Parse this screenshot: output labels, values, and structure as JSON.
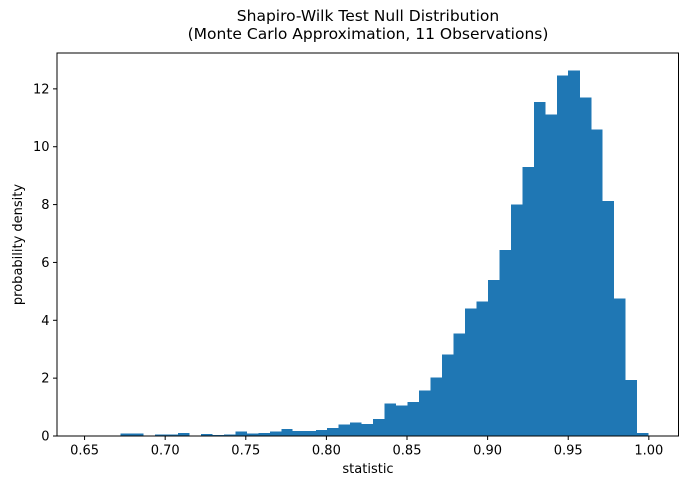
{
  "figure": {
    "title_line1": "Shapiro-Wilk Test Null Distribution",
    "title_line2": "(Monte Carlo Approximation, 11 Observations)",
    "xlabel": "statistic",
    "ylabel": "probability density"
  },
  "colors": {
    "bar_fill": "#1f77b4",
    "axis_line": "#000000",
    "background": "#ffffff",
    "text": "#000000"
  },
  "chart_data": {
    "type": "bar",
    "subtype": "histogram",
    "title": "Shapiro-Wilk Test Null Distribution\n(Monte Carlo Approximation, 11 Observations)",
    "xlabel": "statistic",
    "ylabel": "probability density",
    "grid": false,
    "legend_position": "none",
    "xlim": [
      0.6329,
      1.0184
    ],
    "ylim": [
      0,
      13.24
    ],
    "x_ticks": [
      0.65,
      0.7,
      0.75,
      0.8,
      0.85,
      0.9,
      0.95,
      1.0
    ],
    "x_tick_labels": [
      "0.65",
      "0.70",
      "0.75",
      "0.80",
      "0.85",
      "0.90",
      "0.95",
      "1.00"
    ],
    "y_ticks": [
      0,
      2,
      4,
      6,
      8,
      10,
      12
    ],
    "y_tick_labels": [
      "0",
      "2",
      "4",
      "6",
      "8",
      "10",
      "12"
    ],
    "bin_edges": [
      0.6723,
      0.6794,
      0.6865,
      0.6937,
      0.7008,
      0.7079,
      0.715,
      0.7222,
      0.7293,
      0.7364,
      0.7435,
      0.7506,
      0.7578,
      0.7649,
      0.772,
      0.7791,
      0.7862,
      0.7934,
      0.8005,
      0.8076,
      0.8147,
      0.8219,
      0.829,
      0.8361,
      0.8432,
      0.8503,
      0.8575,
      0.8646,
      0.8717,
      0.8788,
      0.8859,
      0.8931,
      0.9002,
      0.9073,
      0.9144,
      0.9216,
      0.9287,
      0.9358,
      0.9429,
      0.95,
      0.9572,
      0.9643,
      0.9714,
      0.9785,
      0.9856,
      0.9928,
      0.9999
    ],
    "densities": [
      0.08,
      0.08,
      0.01,
      0.06,
      0.05,
      0.1,
      0.02,
      0.07,
      0.04,
      0.06,
      0.16,
      0.08,
      0.1,
      0.16,
      0.24,
      0.18,
      0.18,
      0.2,
      0.28,
      0.4,
      0.47,
      0.42,
      0.58,
      1.12,
      1.06,
      1.17,
      1.57,
      2.03,
      2.82,
      3.55,
      4.4,
      4.65,
      5.4,
      6.43,
      8.01,
      9.3,
      11.55,
      11.12,
      12.46,
      12.63,
      11.7,
      10.6,
      8.13,
      4.76,
      1.94,
      0.11
    ]
  }
}
